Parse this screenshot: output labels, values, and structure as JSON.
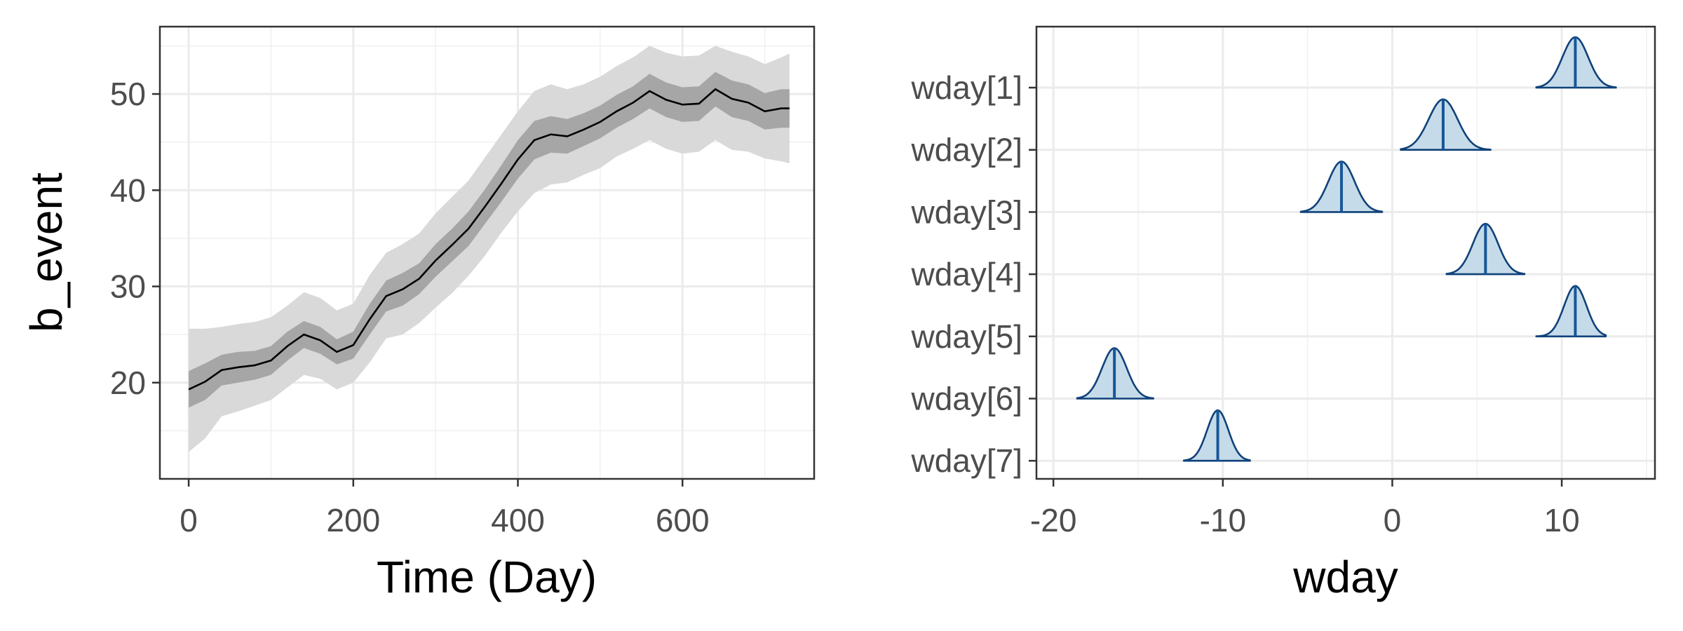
{
  "chart_data": [
    {
      "type": "line",
      "title": "",
      "xlabel": "Time (Day)",
      "ylabel": "b_event",
      "xlim": [
        -35,
        760
      ],
      "ylim": [
        10,
        57
      ],
      "xticks": [
        0,
        200,
        400,
        600
      ],
      "yticks": [
        20,
        30,
        40,
        50
      ],
      "grid": true,
      "legend": "none",
      "colors": {
        "line": "#000000",
        "inner_band": "#a6a6a6",
        "outer_band": "#d9d9d9"
      },
      "x": [
        0,
        20,
        40,
        60,
        80,
        100,
        120,
        140,
        160,
        180,
        200,
        220,
        240,
        260,
        280,
        300,
        320,
        340,
        360,
        380,
        400,
        420,
        440,
        460,
        480,
        500,
        520,
        540,
        560,
        580,
        600,
        620,
        640,
        660,
        680,
        700,
        720,
        730
      ],
      "series": [
        {
          "role": "median",
          "values": [
            19.3,
            20.1,
            21.3,
            21.6,
            21.8,
            22.3,
            23.8,
            25.0,
            24.4,
            23.2,
            23.9,
            26.6,
            29.0,
            29.7,
            30.8,
            32.7,
            34.3,
            36.0,
            38.3,
            40.7,
            43.2,
            45.2,
            45.8,
            45.6,
            46.3,
            47.1,
            48.2,
            49.1,
            50.3,
            49.4,
            48.9,
            49.0,
            50.5,
            49.5,
            49.1,
            48.2,
            48.5,
            48.5
          ]
        },
        {
          "role": "inner_lower",
          "values": [
            17.4,
            18.2,
            19.7,
            20.0,
            20.3,
            20.8,
            22.3,
            23.6,
            23.0,
            21.9,
            22.5,
            25.0,
            27.4,
            28.0,
            29.2,
            31.0,
            32.6,
            34.2,
            36.5,
            38.8,
            41.2,
            43.2,
            43.9,
            43.8,
            44.6,
            45.4,
            46.5,
            47.4,
            48.5,
            47.6,
            47.1,
            47.2,
            48.7,
            47.6,
            47.2,
            46.3,
            46.5,
            46.5
          ]
        },
        {
          "role": "inner_upper",
          "values": [
            21.2,
            22.0,
            22.9,
            23.2,
            23.3,
            23.8,
            25.3,
            26.4,
            25.8,
            24.5,
            25.3,
            28.2,
            30.6,
            31.4,
            32.4,
            34.4,
            36.0,
            37.8,
            40.1,
            42.6,
            45.2,
            47.2,
            47.7,
            47.4,
            48.0,
            48.8,
            49.9,
            50.8,
            52.1,
            51.2,
            50.7,
            50.8,
            52.3,
            51.4,
            51.0,
            50.1,
            50.5,
            50.5
          ]
        },
        {
          "role": "outer_lower",
          "values": [
            12.8,
            14.2,
            16.5,
            17.0,
            17.6,
            18.2,
            19.5,
            20.8,
            20.4,
            19.3,
            20.0,
            22.1,
            24.6,
            25.0,
            26.2,
            27.8,
            29.3,
            31.1,
            33.2,
            35.6,
            37.8,
            39.7,
            40.6,
            40.8,
            41.6,
            42.3,
            43.5,
            44.3,
            45.2,
            44.3,
            43.8,
            44.0,
            45.2,
            44.2,
            44.0,
            43.3,
            43.0,
            42.8
          ]
        },
        {
          "role": "outer_upper",
          "values": [
            25.6,
            25.6,
            25.8,
            26.1,
            26.3,
            26.8,
            28.0,
            29.4,
            28.8,
            27.5,
            28.2,
            31.2,
            33.5,
            34.4,
            35.5,
            37.6,
            39.3,
            41.0,
            43.4,
            45.8,
            48.2,
            50.3,
            51.0,
            50.5,
            51.0,
            51.8,
            52.9,
            53.8,
            55.0,
            54.3,
            53.9,
            54.0,
            55.0,
            54.4,
            53.9,
            53.1,
            53.8,
            54.2
          ]
        }
      ]
    },
    {
      "type": "density",
      "title": "",
      "xlabel": "wday",
      "ylabel": "",
      "xlim": [
        -21,
        15.5
      ],
      "xticks": [
        -20,
        -10,
        0,
        10
      ],
      "grid": true,
      "legend": "none",
      "colors": {
        "fill": "#c6dbe9",
        "stroke": "#10427a",
        "median": "#16579a"
      },
      "categories": [
        "wday[1]",
        "wday[2]",
        "wday[3]",
        "wday[4]",
        "wday[5]",
        "wday[6]",
        "wday[7]"
      ],
      "medians": [
        10.8,
        3.0,
        -3.0,
        5.5,
        10.8,
        -16.4,
        -10.3
      ],
      "intervals": [
        [
          8.5,
          13.2
        ],
        [
          0.5,
          5.8
        ],
        [
          -5.4,
          -0.6
        ],
        [
          3.2,
          7.8
        ],
        [
          8.5,
          12.6
        ],
        [
          -18.6,
          -14.1
        ],
        [
          -12.3,
          -8.4
        ]
      ]
    }
  ]
}
